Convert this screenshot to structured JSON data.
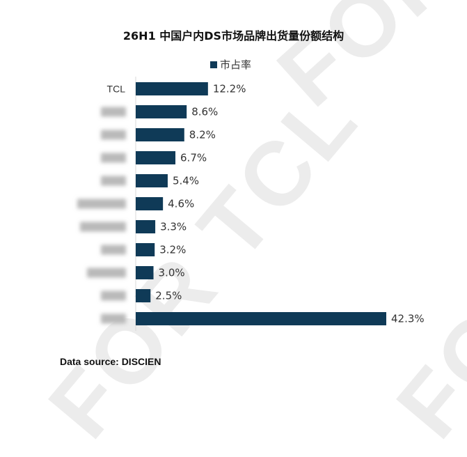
{
  "chart_data": {
    "type": "bar",
    "orientation": "horizontal",
    "title": "26H1 中国户内DS市场品牌出货量份额结构",
    "categories": [
      "TCL",
      "",
      "",
      "",
      "",
      "",
      "",
      "",
      "",
      "",
      ""
    ],
    "series": [
      {
        "name": "市占率",
        "values": [
          12.2,
          8.6,
          8.2,
          6.7,
          5.4,
          4.6,
          3.3,
          3.2,
          3.0,
          2.5,
          42.3
        ],
        "labels": [
          "12.2%",
          "8.6%",
          "8.2%",
          "6.7%",
          "5.4%",
          "4.6%",
          "3.3%",
          "3.2%",
          "3.0%",
          "2.5%",
          "42.3%"
        ]
      }
    ],
    "xlim": [
      0,
      42.3
    ],
    "grid": false,
    "legend_position": "top-center",
    "bar_color": "#0f3a57",
    "category_label_blurred": [
      false,
      true,
      true,
      true,
      true,
      true,
      true,
      true,
      true,
      true,
      true
    ]
  },
  "source": "Data source: DISCIEN",
  "watermark": "FOR TCL"
}
